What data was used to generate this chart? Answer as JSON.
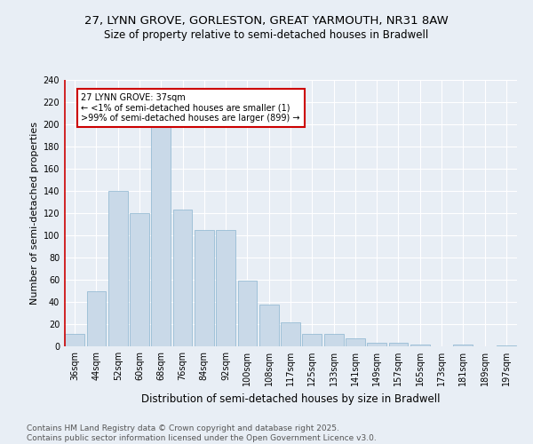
{
  "title": "27, LYNN GROVE, GORLESTON, GREAT YARMOUTH, NR31 8AW",
  "subtitle": "Size of property relative to semi-detached houses in Bradwell",
  "xlabel": "Distribution of semi-detached houses by size in Bradwell",
  "ylabel": "Number of semi-detached properties",
  "bar_color": "#c9d9e8",
  "bar_edge_color": "#8ab4cf",
  "background_color": "#e8eef5",
  "grid_color": "#ffffff",
  "annotation_title": "27 LYNN GROVE: 37sqm",
  "annotation_line1": "← <1% of semi-detached houses are smaller (1)",
  "annotation_line2": ">99% of semi-detached houses are larger (899) →",
  "annotation_box_color": "#ffffff",
  "annotation_border_color": "#cc0000",
  "property_line_color": "#cc0000",
  "categories": [
    "36sqm",
    "44sqm",
    "52sqm",
    "60sqm",
    "68sqm",
    "76sqm",
    "84sqm",
    "92sqm",
    "100sqm",
    "108sqm",
    "117sqm",
    "125sqm",
    "133sqm",
    "141sqm",
    "149sqm",
    "157sqm",
    "165sqm",
    "173sqm",
    "181sqm",
    "189sqm",
    "197sqm"
  ],
  "values": [
    11,
    50,
    140,
    120,
    200,
    123,
    105,
    105,
    59,
    38,
    22,
    11,
    11,
    7,
    3,
    3,
    2,
    0,
    2,
    0,
    1
  ],
  "property_bin_index": 0,
  "ylim": [
    0,
    240
  ],
  "yticks": [
    0,
    20,
    40,
    60,
    80,
    100,
    120,
    140,
    160,
    180,
    200,
    220,
    240
  ],
  "footer_line1": "Contains HM Land Registry data © Crown copyright and database right 2025.",
  "footer_line2": "Contains public sector information licensed under the Open Government Licence v3.0.",
  "title_fontsize": 9.5,
  "subtitle_fontsize": 8.5,
  "axis_label_fontsize": 8,
  "tick_fontsize": 7,
  "annotation_fontsize": 7,
  "footer_fontsize": 6.5
}
